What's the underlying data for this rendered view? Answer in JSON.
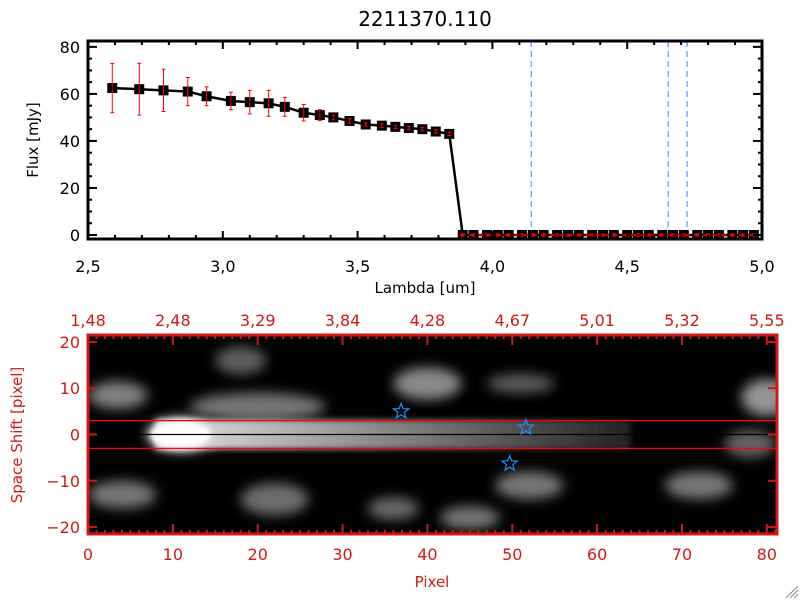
{
  "colors": {
    "axis_top": "#000000",
    "error_bar": "#ff0000",
    "axis_bottom": "#d01818",
    "marker_line": "#1e90ff",
    "trace_line": "#ff0000"
  },
  "chart_data": [
    {
      "type": "line",
      "title": "2211370.110",
      "xlabel": "Lambda [um]",
      "ylabel": "Flux [mJy]",
      "xlim": [
        2.5,
        5.0
      ],
      "ylim": [
        -1.7,
        82.5
      ],
      "xticks": [
        "2.5",
        "3.0",
        "3.5",
        "4.0",
        "4.5",
        "5.0"
      ],
      "yticks": [
        "0",
        "20",
        "40",
        "60",
        "80"
      ],
      "x": [
        2.59,
        2.69,
        2.78,
        2.87,
        2.94,
        3.03,
        3.1,
        3.17,
        3.23,
        3.3,
        3.36,
        3.41,
        3.47,
        3.53,
        3.59,
        3.64,
        3.69,
        3.74,
        3.79,
        3.84,
        3.89,
        3.93,
        3.98,
        4.02,
        4.06,
        4.11,
        4.15,
        4.19,
        4.24,
        4.28,
        4.32,
        4.37,
        4.41,
        4.45,
        4.5,
        4.54,
        4.58,
        4.63,
        4.67,
        4.71,
        4.76,
        4.8,
        4.84,
        4.89,
        4.93,
        4.97
      ],
      "y": [
        62.5,
        62,
        61.5,
        61,
        59,
        57,
        56.5,
        56,
        54.5,
        52,
        51,
        50,
        48.5,
        47,
        46.5,
        46,
        45.5,
        45,
        44,
        43,
        0,
        0,
        0,
        0,
        0,
        0,
        0,
        0,
        0,
        0,
        0,
        0,
        0,
        0,
        0,
        0,
        0,
        0,
        0,
        0,
        0,
        0,
        0,
        0,
        0,
        0
      ],
      "yerr": [
        10.5,
        11,
        9,
        6,
        4,
        3.7,
        5,
        5.5,
        4,
        3.5,
        2.3,
        1,
        1,
        0.7,
        0.7,
        0.7,
        0.7,
        0.7,
        0.7,
        0.7,
        0.5,
        0.5,
        0.5,
        0.5,
        0.5,
        0.5,
        0.5,
        0.5,
        0.5,
        0.5,
        0.5,
        0.5,
        0.5,
        0.5,
        0.5,
        0.5,
        0.5,
        0.5,
        0.5,
        0.5,
        0.5,
        0.5,
        0.5,
        0.5,
        0.5,
        0.5
      ],
      "vlines": [
        4.144,
        4.652,
        4.722
      ],
      "hline": 0
    },
    {
      "type": "heatmap",
      "xlabel": "Pixel",
      "ylabel": "Space Shift [pixel]",
      "xlim": [
        0,
        81.2
      ],
      "ylim": [
        -21.5,
        21.5
      ],
      "xticks": [
        "0",
        "10",
        "20",
        "30",
        "40",
        "50",
        "60",
        "70",
        "80"
      ],
      "yticks": [
        "-20",
        "-10",
        "0",
        "10",
        "20"
      ],
      "top_axis_ticks": [
        "1.48",
        "2.48",
        "3.29",
        "3.84",
        "4.28",
        "4.67",
        "5.01",
        "5.32",
        "5.55"
      ],
      "extraction_lines": [
        3,
        0,
        -3
      ],
      "stars": [
        {
          "x": 36.9,
          "y": 5
        },
        {
          "x": 51.6,
          "y": 1.5
        },
        {
          "x": 49.7,
          "y": -6.3
        }
      ],
      "blobs": [
        {
          "x": 11,
          "y": 0,
          "rx": 4,
          "ry": 3.5,
          "v": 1.0
        },
        {
          "x": 40,
          "y": 11,
          "rx": 4,
          "ry": 3.5,
          "v": 0.4
        },
        {
          "x": 3.5,
          "y": 8.5,
          "rx": 3.5,
          "ry": 3,
          "v": 0.35
        },
        {
          "x": 4,
          "y": -13,
          "rx": 4,
          "ry": 3,
          "v": 0.3
        },
        {
          "x": 22,
          "y": -14,
          "rx": 4,
          "ry": 3.5,
          "v": 0.25
        },
        {
          "x": 45,
          "y": -18,
          "rx": 3.5,
          "ry": 2.5,
          "v": 0.3
        },
        {
          "x": 36,
          "y": -16,
          "rx": 3,
          "ry": 2.5,
          "v": 0.22
        },
        {
          "x": 52,
          "y": -11,
          "rx": 4,
          "ry": 3,
          "v": 0.3
        },
        {
          "x": 72,
          "y": -11,
          "rx": 4,
          "ry": 3,
          "v": 0.3
        },
        {
          "x": 80,
          "y": 8,
          "rx": 3,
          "ry": 4,
          "v": 0.45
        },
        {
          "x": 18,
          "y": 16,
          "rx": 3,
          "ry": 3,
          "v": 0.18
        },
        {
          "x": 51,
          "y": 11,
          "rx": 4,
          "ry": 2,
          "v": 0.18
        },
        {
          "x": 78,
          "y": -2,
          "rx": 3,
          "ry": 3,
          "v": 0.2
        },
        {
          "x": 20,
          "y": 6,
          "rx": 8,
          "ry": 3,
          "v": 0.3
        }
      ],
      "trace": {
        "x_start": 8,
        "x_end": 64,
        "half_width": 3.2,
        "v_start": 0.9,
        "v_end": 0.1
      }
    }
  ]
}
